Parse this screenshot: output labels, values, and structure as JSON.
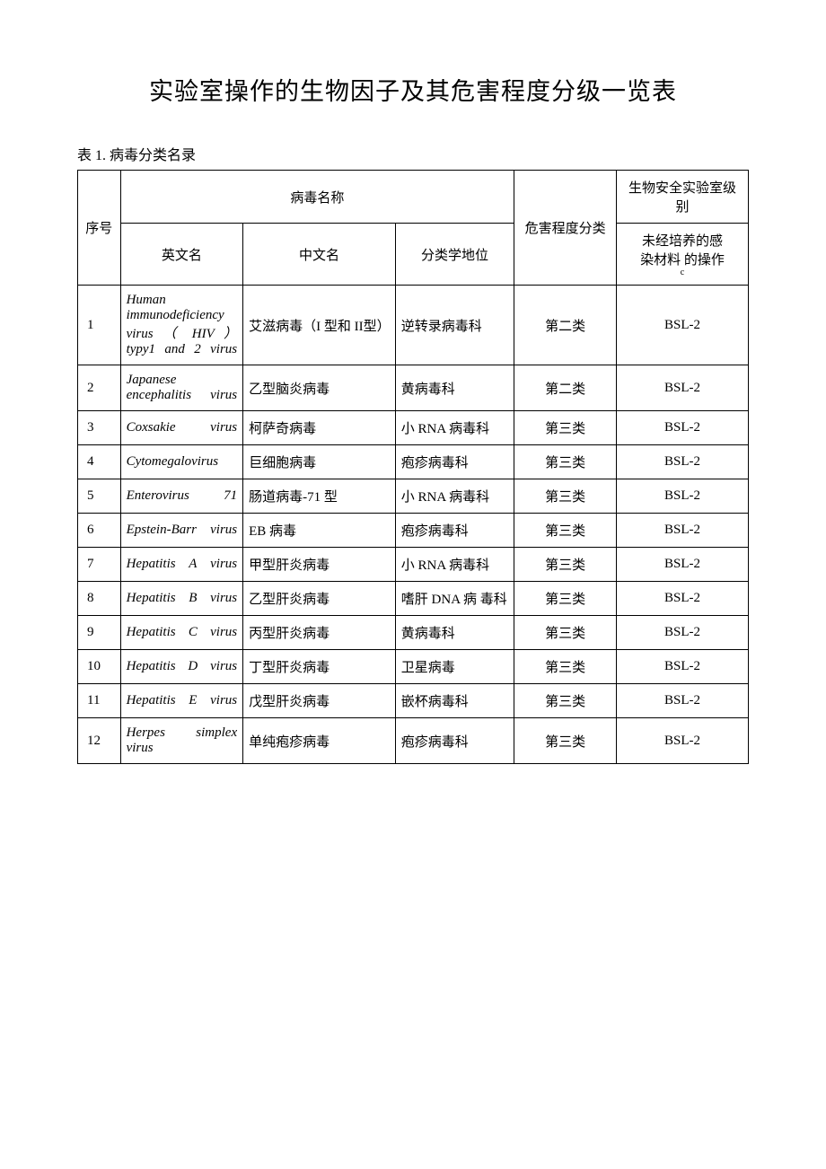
{
  "page_title": "实验室操作的生物因子及其危害程度分级一览表",
  "table_caption": "表 1.  病毒分类名录",
  "header": {
    "seq": "序号",
    "virus_name": "病毒名称",
    "en_name": "英文名",
    "cn_name": "中文名",
    "taxonomy": "分类学地位",
    "hazard": "危害程度分类",
    "bsl_group": "生物安全实验室级别",
    "bsl_sub_line1": "未经培养的感",
    "bsl_sub_line2": "染材料   的操作",
    "bsl_sub_c": "c"
  },
  "colors": {
    "background": "#ffffff",
    "text": "#000000",
    "border": "#000000"
  },
  "font": {
    "title_size": 27,
    "body_size": 15,
    "caption_size": 16,
    "family": "SimSun"
  },
  "columns": {
    "seq_width": 46,
    "en_width": 132,
    "cn_width": 164,
    "tax_width": 128,
    "hazard_width": 110,
    "bsl_width": 142
  },
  "rows": [
    {
      "seq": "1",
      "en": "Human immunodeficiency virus （ HIV ） typy1 and 2 virus",
      "cn": "艾滋病毒（I 型和 II型）",
      "tax": "逆转录病毒科",
      "hazard": "第二类",
      "bsl": "BSL-2"
    },
    {
      "seq": "2",
      "en": "Japanese encephalitis virus",
      "cn": "乙型脑炎病毒",
      "tax": "黄病毒科",
      "hazard": "第二类",
      "bsl": "BSL-2"
    },
    {
      "seq": "3",
      "en": "Coxsakie virus",
      "cn": "柯萨奇病毒",
      "tax": "小 RNA 病毒科",
      "hazard": "第三类",
      "bsl": "BSL-2"
    },
    {
      "seq": "4",
      "en": "Cytomegalovirus",
      "cn": "巨细胞病毒",
      "tax": "疱疹病毒科",
      "hazard": "第三类",
      "bsl": "BSL-2"
    },
    {
      "seq": "5",
      "en": "Enterovirus 71",
      "cn": "肠道病毒-71 型",
      "tax": "小 RNA 病毒科",
      "hazard": "第三类",
      "bsl": "BSL-2"
    },
    {
      "seq": "6",
      "en": "Epstein-Barr virus",
      "cn": "EB 病毒",
      "tax": "疱疹病毒科",
      "hazard": "第三类",
      "bsl": "BSL-2"
    },
    {
      "seq": "7",
      "en": "Hepatitis A virus",
      "cn": "甲型肝炎病毒",
      "tax": "小 RNA 病毒科",
      "hazard": "第三类",
      "bsl": "BSL-2"
    },
    {
      "seq": "8",
      "en": "Hepatitis B virus",
      "cn": "乙型肝炎病毒",
      "tax": "嗜肝 DNA 病 毒科",
      "hazard": "第三类",
      "bsl": "BSL-2"
    },
    {
      "seq": "9",
      "en": "Hepatitis C virus",
      "cn": "丙型肝炎病毒",
      "tax": "黄病毒科",
      "hazard": "第三类",
      "bsl": "BSL-2"
    },
    {
      "seq": "10",
      "en": "Hepatitis D virus",
      "cn": "丁型肝炎病毒",
      "tax": "卫星病毒",
      "hazard": "第三类",
      "bsl": "BSL-2"
    },
    {
      "seq": "11",
      "en": "Hepatitis E virus",
      "cn": "戊型肝炎病毒",
      "tax": "嵌杯病毒科",
      "hazard": "第三类",
      "bsl": "BSL-2"
    },
    {
      "seq": "12",
      "en": "Herpes simplex virus",
      "cn": "单纯疱疹病毒",
      "tax": "疱疹病毒科",
      "hazard": "第三类",
      "bsl": "BSL-2"
    }
  ]
}
